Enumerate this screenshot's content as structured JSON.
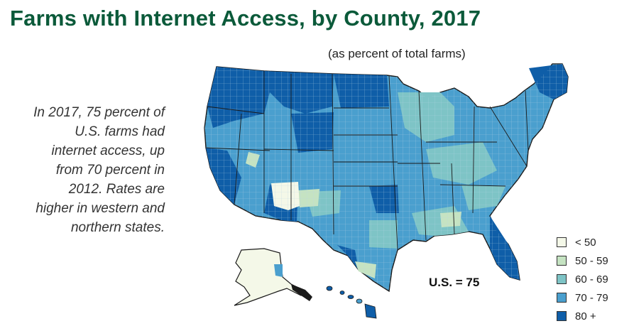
{
  "title": "Farms with Internet Access, by County, 2017",
  "subtitle": "(as percent of total farms)",
  "summary": "In 2017, 75 percent of U.S. farms had internet access, up from 70 percent in 2012. Rates are higher in western and northern states.",
  "us_average_label": "U.S. = 75",
  "legend": [
    {
      "label": "< 50",
      "color": "#f4f8e8"
    },
    {
      "label": "50 - 59",
      "color": "#c5e3c2"
    },
    {
      "label": "60 - 69",
      "color": "#7ec4c6"
    },
    {
      "label": "70 - 79",
      "color": "#4a9fce"
    },
    {
      "label": "80 +",
      "color": "#0f5ea8"
    }
  ],
  "colors": {
    "title": "#0b5a3a",
    "border": "#ffffff",
    "outline": "#1a1a1a"
  }
}
